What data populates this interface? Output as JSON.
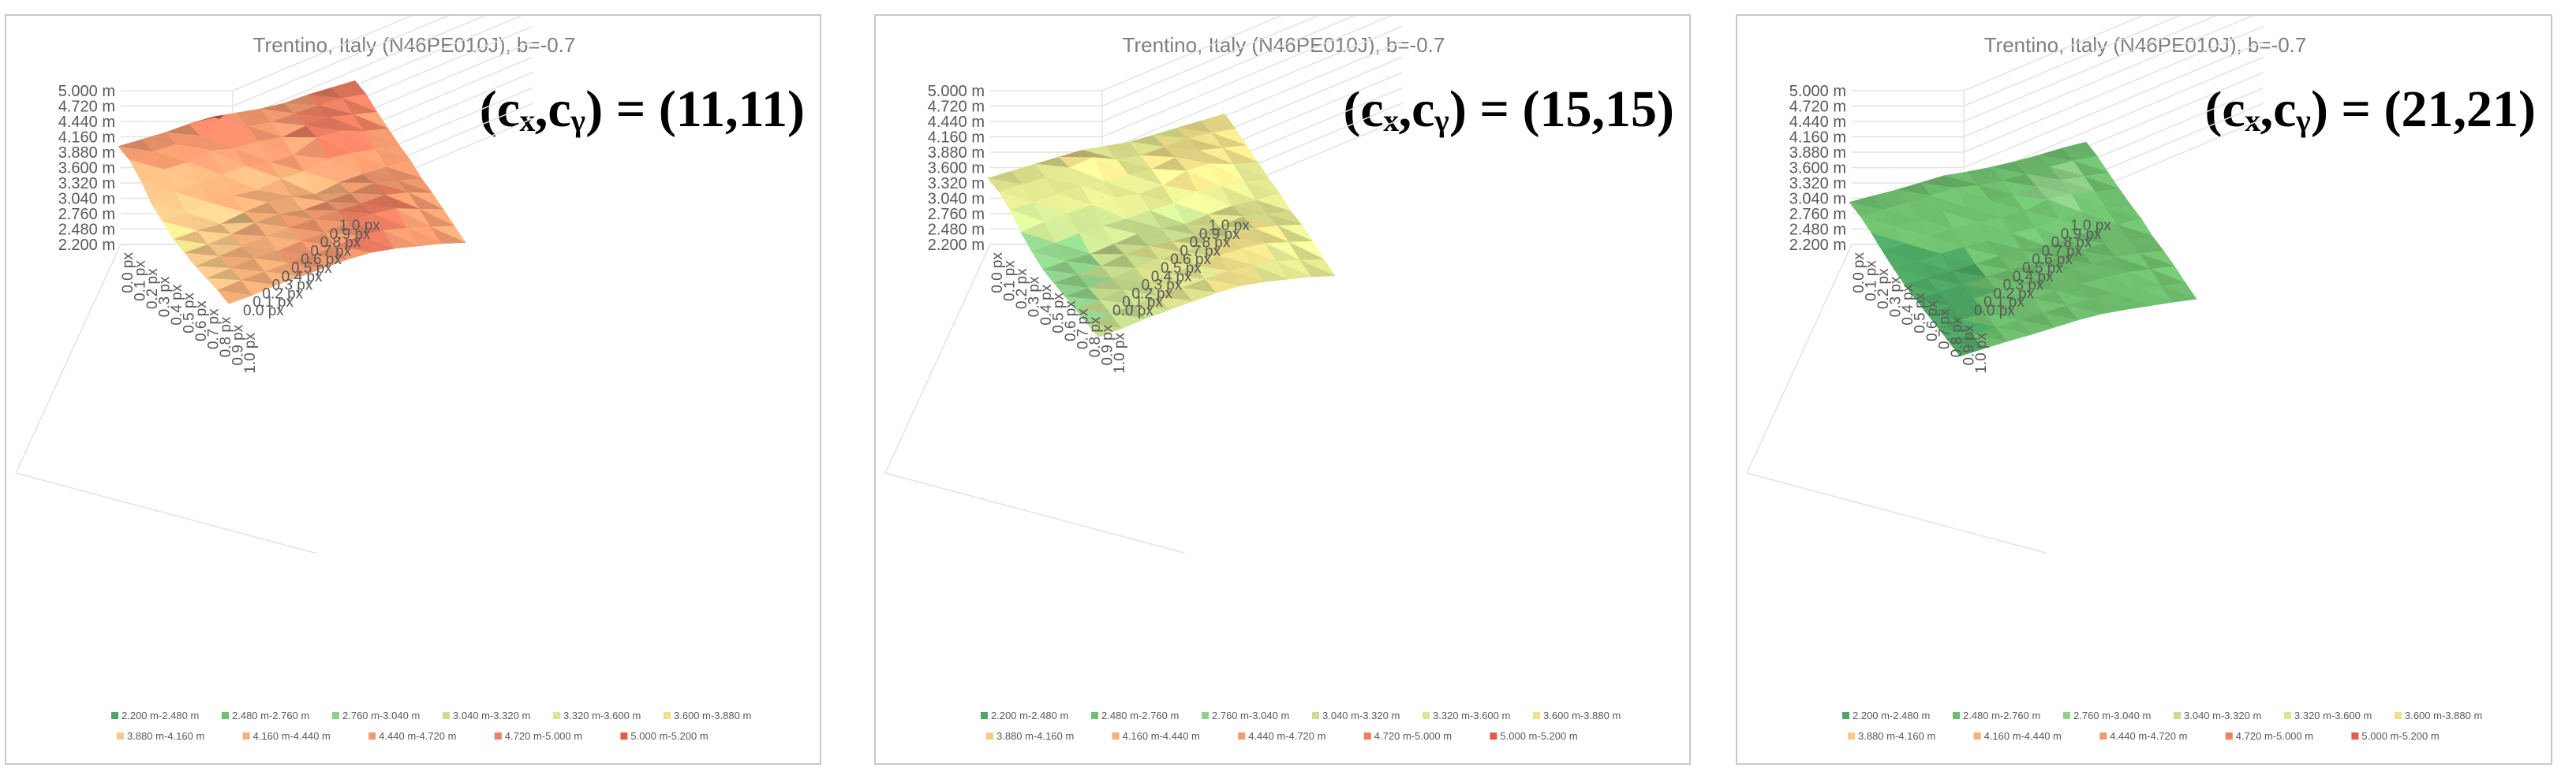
{
  "chart_data": [
    {
      "type": "surface",
      "title": "Trentino, Italy (N46PE010J), b=-0.7",
      "annotation": "(cₓ,cᵧ) = (11,11)",
      "z_ticks": [
        "5.000 m",
        "4.720 m",
        "4.440 m",
        "4.160 m",
        "3.880 m",
        "3.600 m",
        "3.320 m",
        "3.040 m",
        "2.760 m",
        "2.480 m",
        "2.200 m"
      ],
      "x_ticks": [
        "0.0 px",
        "0.1 px",
        "0.2 px",
        "0.3 px",
        "0.4 px",
        "0.5 px",
        "0.6 px",
        "0.7 px",
        "0.8 px",
        "0.9 px",
        "1.0 px"
      ],
      "y_ticks": [
        "0.0 px",
        "0.1 px",
        "0.2 px",
        "0.3 px",
        "0.4 px",
        "0.5 px",
        "0.6 px",
        "0.7 px",
        "0.8 px",
        "0.9 px",
        "1.0 px"
      ],
      "zlim": [
        2200,
        5000
      ],
      "z_unit": "m",
      "legend": [
        "2.200 m-2.480 m",
        "2.480 m-2.760 m",
        "2.760 m-3.040 m",
        "3.040 m-3.320 m",
        "3.320 m-3.600 m",
        "3.600 m-3.880 m",
        "3.880 m-4.160 m",
        "4.160 m-4.440 m",
        "4.440 m-4.720 m",
        "4.720 m-5.000 m",
        "5.000 m-5.200 m"
      ],
      "legend_colors": [
        "#4ea865",
        "#6fbf6f",
        "#8fd08a",
        "#c7de8f",
        "#dfe58f",
        "#f0e28c",
        "#f7c98a",
        "#f6b07a",
        "#f39a70",
        "#ee7f62",
        "#e65a4e"
      ],
      "z_values": [
        [
          4400,
          4450,
          4500,
          4600,
          4650,
          4600,
          4550,
          4550,
          4650,
          4700,
          4750
        ],
        [
          4450,
          4550,
          4600,
          4700,
          5200,
          4650,
          4600,
          4700,
          4800,
          4850,
          4800
        ],
        [
          4300,
          4450,
          4500,
          4700,
          4600,
          4650,
          4600,
          4800,
          4900,
          4800,
          4700
        ],
        [
          4000,
          4200,
          4300,
          4400,
          4500,
          4450,
          4500,
          4900,
          4950,
          4750,
          4650
        ],
        [
          3900,
          4000,
          4150,
          4200,
          4200,
          4400,
          4450,
          4700,
          4700,
          4650,
          4600
        ],
        [
          3800,
          3900,
          3950,
          4150,
          4300,
          4300,
          4200,
          4400,
          4500,
          4550,
          4600
        ],
        [
          3850,
          3950,
          4100,
          4300,
          4400,
          4350,
          4450,
          4550,
          4700,
          4600,
          4500
        ],
        [
          3900,
          4050,
          4200,
          4350,
          4450,
          4550,
          4650,
          4700,
          4800,
          4700,
          4500
        ],
        [
          4000,
          4150,
          4300,
          4350,
          4500,
          4600,
          4750,
          4850,
          4850,
          4650,
          4450
        ],
        [
          4100,
          4250,
          4350,
          4450,
          4550,
          4650,
          4800,
          4800,
          4700,
          4550,
          4400
        ],
        [
          4150,
          4250,
          4400,
          4500,
          4600,
          4700,
          4750,
          4700,
          4600,
          4500,
          4350
        ]
      ]
    },
    {
      "type": "surface",
      "title": "Trentino, Italy (N46PE010J), b=-0.7",
      "annotation": "(cₓ,cᵧ) = (15,15)",
      "z_ticks": [
        "5.000 m",
        "4.720 m",
        "4.440 m",
        "4.160 m",
        "3.880 m",
        "3.600 m",
        "3.320 m",
        "3.040 m",
        "2.760 m",
        "2.480 m",
        "2.200 m"
      ],
      "x_ticks": [
        "0.0 px",
        "0.1 px",
        "0.2 px",
        "0.3 px",
        "0.4 px",
        "0.5 px",
        "0.6 px",
        "0.7 px",
        "0.8 px",
        "0.9 px",
        "1.0 px"
      ],
      "y_ticks": [
        "0.0 px",
        "0.1 px",
        "0.2 px",
        "0.3 px",
        "0.4 px",
        "0.5 px",
        "0.6 px",
        "0.7 px",
        "0.8 px",
        "0.9 px",
        "1.0 px"
      ],
      "zlim": [
        2200,
        5000
      ],
      "z_unit": "m",
      "legend": [
        "2.200 m-2.480 m",
        "2.480 m-2.760 m",
        "2.760 m-3.040 m",
        "3.040 m-3.320 m",
        "3.320 m-3.600 m",
        "3.600 m-3.880 m",
        "3.880 m-4.160 m",
        "4.160 m-4.440 m",
        "4.440 m-4.720 m",
        "4.720 m-5.000 m",
        "5.000 m-5.200 m"
      ],
      "legend_colors": [
        "#4ea865",
        "#6fbf6f",
        "#8fd08a",
        "#c7de8f",
        "#dfe58f",
        "#f0e28c",
        "#f7c98a",
        "#f6b07a",
        "#f39a70",
        "#ee7f62",
        "#e65a4e"
      ],
      "z_values": [
        [
          3350,
          3400,
          3450,
          3500,
          3550,
          3500,
          3450,
          3500,
          3550,
          3600,
          3650
        ],
        [
          3400,
          3450,
          3500,
          3650,
          3800,
          3550,
          3500,
          3600,
          3700,
          3700,
          3650
        ],
        [
          3300,
          3350,
          3450,
          3550,
          3500,
          3550,
          3550,
          3750,
          3800,
          3700,
          3600
        ],
        [
          3050,
          3200,
          3300,
          3400,
          3450,
          3400,
          3500,
          3800,
          3850,
          3650,
          3550
        ],
        [
          2900,
          3000,
          3150,
          3200,
          3250,
          3350,
          3400,
          3600,
          3600,
          3550,
          3500
        ],
        [
          2800,
          2900,
          2950,
          3100,
          3250,
          3250,
          3200,
          3350,
          3450,
          3450,
          3500
        ],
        [
          2850,
          2950,
          3050,
          3250,
          3350,
          3300,
          3350,
          3450,
          3600,
          3500,
          3400
        ],
        [
          2900,
          3000,
          3150,
          3300,
          3400,
          3450,
          3550,
          3600,
          3700,
          3600,
          3450
        ],
        [
          2950,
          3100,
          3250,
          3300,
          3400,
          3500,
          3650,
          3700,
          3700,
          3550,
          3400
        ],
        [
          3000,
          3150,
          3250,
          3350,
          3450,
          3550,
          3650,
          3650,
          3600,
          3450,
          3300
        ],
        [
          3050,
          3150,
          3300,
          3400,
          3500,
          3600,
          3650,
          3600,
          3500,
          3400,
          3250
        ]
      ]
    },
    {
      "type": "surface",
      "title": "Trentino, Italy (N46PE010J), b=-0.7",
      "annotation": "(cₓ,cᵧ) = (21,21)",
      "z_ticks": [
        "5.000 m",
        "4.720 m",
        "4.440 m",
        "4.160 m",
        "3.880 m",
        "3.600 m",
        "3.320 m",
        "3.040 m",
        "2.760 m",
        "2.480 m",
        "2.200 m"
      ],
      "x_ticks": [
        "0.0 px",
        "0.1 px",
        "0.2 px",
        "0.3 px",
        "0.4 px",
        "0.5 px",
        "0.6 px",
        "0.7 px",
        "0.8 px",
        "0.9 px",
        "1.0 px"
      ],
      "y_ticks": [
        "0.0 px",
        "0.1 px",
        "0.2 px",
        "0.3 px",
        "0.4 px",
        "0.5 px",
        "0.6 px",
        "0.7 px",
        "0.8 px",
        "0.9 px",
        "1.0 px"
      ],
      "zlim": [
        2200,
        5000
      ],
      "z_unit": "m",
      "legend": [
        "2.200 m-2.480 m",
        "2.480 m-2.760 m",
        "2.760 m-3.040 m",
        "3.040 m-3.320 m",
        "3.320 m-3.600 m",
        "3.600 m-3.880 m",
        "3.880 m-4.160 m",
        "4.160 m-4.440 m",
        "4.440 m-4.720 m",
        "4.720 m-5.000 m",
        "5.000 m-5.200 m"
      ],
      "legend_colors": [
        "#4ea865",
        "#6fbf6f",
        "#8fd08a",
        "#c7de8f",
        "#dfe58f",
        "#f0e28c",
        "#f7c98a",
        "#f6b07a",
        "#f39a70",
        "#ee7f62",
        "#e65a4e"
      ],
      "z_values": [
        [
          2550,
          2580,
          2600,
          2650,
          2700,
          2650,
          2620,
          2620,
          2650,
          2700,
          2720
        ],
        [
          2580,
          2620,
          2660,
          2720,
          2800,
          2700,
          2650,
          2700,
          2750,
          2780,
          2750
        ],
        [
          2520,
          2560,
          2620,
          2700,
          2650,
          2700,
          2680,
          2780,
          2820,
          2760,
          2700
        ],
        [
          2420,
          2480,
          2540,
          2600,
          2650,
          2620,
          2660,
          2850,
          2850,
          2740,
          2660
        ],
        [
          2350,
          2400,
          2460,
          2500,
          2520,
          2580,
          2600,
          2700,
          2720,
          2680,
          2640
        ],
        [
          2300,
          2340,
          2380,
          2440,
          2520,
          2520,
          2480,
          2560,
          2620,
          2640,
          2660
        ],
        [
          2320,
          2360,
          2420,
          2500,
          2560,
          2540,
          2580,
          2640,
          2700,
          2640,
          2580
        ],
        [
          2340,
          2400,
          2460,
          2540,
          2600,
          2640,
          2680,
          2700,
          2740,
          2680,
          2600
        ],
        [
          2380,
          2440,
          2500,
          2540,
          2600,
          2660,
          2720,
          2740,
          2740,
          2660,
          2580
        ],
        [
          2400,
          2460,
          2520,
          2560,
          2620,
          2680,
          2720,
          2720,
          2680,
          2600,
          2520
        ],
        [
          2420,
          2480,
          2540,
          2580,
          2640,
          2700,
          2720,
          2680,
          2620,
          2560,
          2480
        ]
      ]
    }
  ]
}
